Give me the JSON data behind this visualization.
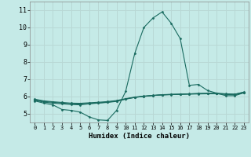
{
  "xlabel": "Humidex (Indice chaleur)",
  "bg_color": "#c5eae7",
  "grid_color": "#b8d8d5",
  "line_color": "#1a6b60",
  "xlim": [
    -0.5,
    23.5
  ],
  "ylim": [
    4.5,
    11.5
  ],
  "yticks": [
    5,
    6,
    7,
    8,
    9,
    10,
    11
  ],
  "xticks": [
    0,
    1,
    2,
    3,
    4,
    5,
    6,
    7,
    8,
    9,
    10,
    11,
    12,
    13,
    14,
    15,
    16,
    17,
    18,
    19,
    20,
    21,
    22,
    23
  ],
  "lines": [
    {
      "x": [
        0,
        1,
        2,
        3,
        4,
        5,
        6,
        7,
        8,
        9,
        10,
        11,
        12,
        13,
        14,
        15,
        16,
        17,
        18,
        19,
        20,
        21,
        22,
        23
      ],
      "y": [
        5.75,
        5.62,
        5.52,
        5.25,
        5.2,
        5.1,
        4.82,
        4.65,
        4.62,
        5.2,
        6.3,
        8.5,
        10.0,
        10.55,
        10.9,
        10.25,
        9.35,
        6.65,
        6.7,
        6.35,
        6.2,
        6.05,
        6.05,
        6.22
      ]
    },
    {
      "x": [
        0,
        1,
        2,
        3,
        4,
        5,
        6,
        7,
        8,
        9,
        10,
        11,
        12,
        13,
        14,
        15,
        16,
        17,
        18,
        19,
        20,
        21,
        22,
        23
      ],
      "y": [
        5.78,
        5.68,
        5.62,
        5.58,
        5.54,
        5.52,
        5.58,
        5.62,
        5.66,
        5.72,
        5.86,
        5.95,
        6.01,
        6.06,
        6.1,
        6.12,
        6.13,
        6.14,
        6.15,
        6.16,
        6.16,
        6.12,
        6.1,
        6.22
      ]
    },
    {
      "x": [
        0,
        1,
        2,
        3,
        4,
        5,
        6,
        7,
        8,
        9,
        10,
        11,
        12,
        13,
        14,
        15,
        16,
        17,
        18,
        19,
        20,
        21,
        22,
        23
      ],
      "y": [
        5.82,
        5.72,
        5.67,
        5.62,
        5.58,
        5.57,
        5.6,
        5.63,
        5.68,
        5.74,
        5.85,
        5.95,
        6.01,
        6.06,
        6.09,
        6.11,
        6.13,
        6.15,
        6.17,
        6.18,
        6.18,
        6.15,
        6.13,
        6.25
      ]
    },
    {
      "x": [
        0,
        1,
        2,
        3,
        4,
        5,
        6,
        7,
        8,
        9,
        10,
        11,
        12,
        13,
        14,
        15,
        16,
        17,
        18,
        19,
        20,
        21,
        22,
        23
      ],
      "y": [
        5.85,
        5.75,
        5.7,
        5.66,
        5.62,
        5.61,
        5.64,
        5.67,
        5.71,
        5.77,
        5.88,
        5.97,
        6.03,
        6.07,
        6.11,
        6.13,
        6.14,
        6.16,
        6.18,
        6.19,
        6.19,
        6.16,
        6.14,
        6.26
      ]
    }
  ]
}
